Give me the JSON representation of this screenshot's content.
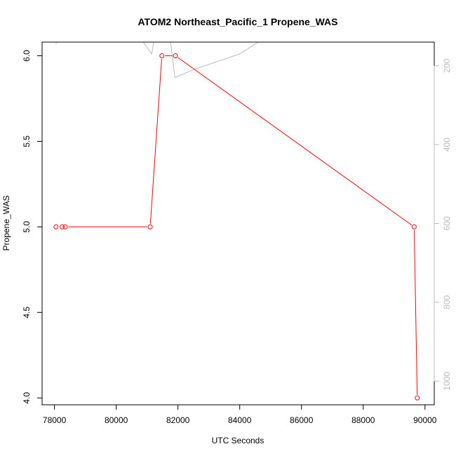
{
  "chart_data": {
    "type": "line",
    "title": "ATOM2 Northeast_Pacific_1 Propene_WAS",
    "xlabel": "UTC Seconds",
    "ylabel": "Propene_WAS",
    "xlim": [
      77600,
      90300
    ],
    "ylim": [
      3.96,
      6.08
    ],
    "x_ticks": [
      78000,
      80000,
      82000,
      84000,
      86000,
      88000,
      90000
    ],
    "y_ticks": [
      4.0,
      4.5,
      5.0,
      5.5,
      6.0
    ],
    "y_tick_labels": [
      "4.0",
      "4.5",
      "5.0",
      "5.5",
      "6.0"
    ],
    "grid": false,
    "series": [
      {
        "color": "#ff0000",
        "x": [
          78050,
          78250,
          78350,
          81100,
          81480,
          81920,
          89650,
          89750
        ],
        "y": [
          5.0,
          5.0,
          5.0,
          5.0,
          6.0,
          6.0,
          5.0,
          4.0
        ]
      }
    ],
    "secondary_axis": {
      "side": "right",
      "color": "#bbbbbb",
      "reversed": true,
      "range": [
        140,
        1060
      ],
      "ticks": [
        200,
        400,
        600,
        800,
        1000
      ],
      "series": {
        "color": "#bbbbbb",
        "x": [
          78050,
          78100,
          80700,
          81150,
          81300,
          81700,
          81900,
          82500,
          84000,
          85000,
          90300
        ],
        "y": [
          145,
          120,
          120,
          170,
          100,
          100,
          230,
          210,
          170,
          120,
          120
        ]
      }
    }
  }
}
